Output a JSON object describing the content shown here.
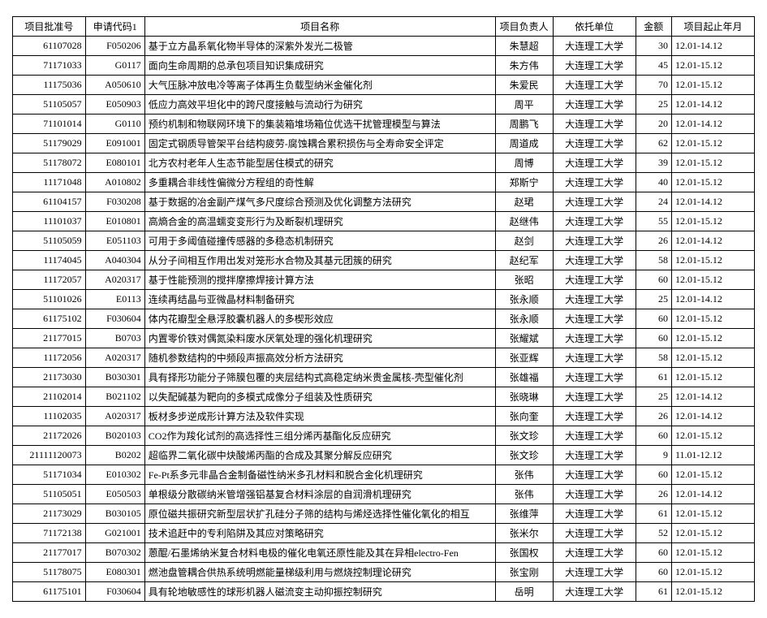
{
  "table": {
    "columns": [
      "项目批准号",
      "申请代码1",
      "项目名称",
      "项目负责人",
      "依托单位",
      "金额",
      "项目起止年月"
    ],
    "rows": [
      [
        "61107028",
        "F050206",
        "基于立方晶系氧化物半导体的深紫外发光二极管",
        "朱慧超",
        "大连理工大学",
        "30",
        "12.01-14.12"
      ],
      [
        "71171033",
        "G0117",
        "面向生命周期的总承包项目知识集成研究",
        "朱方伟",
        "大连理工大学",
        "45",
        "12.01-15.12"
      ],
      [
        "11175036",
        "A050610",
        "大气压脉冲放电冷等离子体再生负载型纳米金催化剂",
        "朱爱民",
        "大连理工大学",
        "70",
        "12.01-15.12"
      ],
      [
        "51105057",
        "E050903",
        "低应力高效平坦化中的跨尺度接触与流动行为研究",
        "周平",
        "大连理工大学",
        "25",
        "12.01-14.12"
      ],
      [
        "71101014",
        "G0110",
        "预约机制和物联网环境下的集装箱堆场箱位优选干扰管理模型与算法",
        "周鹏飞",
        "大连理工大学",
        "20",
        "12.01-14.12"
      ],
      [
        "51179029",
        "E091001",
        "固定式钢质导管架平台结构疲劳-腐蚀耦合累积损伤与全寿命安全评定",
        "周道成",
        "大连理工大学",
        "62",
        "12.01-15.12"
      ],
      [
        "51178072",
        "E080101",
        "北方农村老年人生态节能型居住模式的研究",
        "周博",
        "大连理工大学",
        "39",
        "12.01-15.12"
      ],
      [
        "11171048",
        "A010802",
        "多重耦合非线性偏微分方程组的奇性解",
        "郑斯宁",
        "大连理工大学",
        "40",
        "12.01-15.12"
      ],
      [
        "61104157",
        "F030208",
        "基于数据的冶金副产煤气多尺度综合预测及优化调整方法研究",
        "赵珺",
        "大连理工大学",
        "24",
        "12.01-14.12"
      ],
      [
        "11101037",
        "E010801",
        "高熵合金的高温蠕变变形行为及断裂机理研究",
        "赵继伟",
        "大连理工大学",
        "55",
        "12.01-15.12"
      ],
      [
        "51105059",
        "E051103",
        "可用于多阈值碰撞传感器的多稳态机制研究",
        "赵剑",
        "大连理工大学",
        "26",
        "12.01-14.12"
      ],
      [
        "11174045",
        "A040304",
        "从分子间相互作用出发对笼形水合物及其基元团簇的研究",
        "赵纪军",
        "大连理工大学",
        "58",
        "12.01-15.12"
      ],
      [
        "11172057",
        "A020317",
        "基于性能预测的搅拌摩擦焊接计算方法",
        "张昭",
        "大连理工大学",
        "60",
        "12.01-15.12"
      ],
      [
        "51101026",
        "E0113",
        "连续再结晶与亚微晶材料制备研究",
        "张永顺",
        "大连理工大学",
        "25",
        "12.01-14.12"
      ],
      [
        "61175102",
        "F030604",
        "体内花瓣型全悬浮胶囊机器人的多楔形效应",
        "张永顺",
        "大连理工大学",
        "60",
        "12.01-15.12"
      ],
      [
        "21177015",
        "B0703",
        "内置零价铁对偶氮染料废水厌氧处理的强化机理研究",
        "张耀斌",
        "大连理工大学",
        "60",
        "12.01-15.12"
      ],
      [
        "11172056",
        "A020317",
        "随机参数结构的中频段声振高效分析方法研究",
        "张亚辉",
        "大连理工大学",
        "58",
        "12.01-15.12"
      ],
      [
        "21173030",
        "B030301",
        "具有择形功能分子筛膜包覆的夹层结构式高稳定纳米贵金属核-壳型催化剂",
        "张雄福",
        "大连理工大学",
        "61",
        "12.01-15.12"
      ],
      [
        "21102014",
        "B021102",
        "以失配碱基为靶向的多模式成像分子组装及性质研究",
        "张晓琳",
        "大连理工大学",
        "25",
        "12.01-14.12"
      ],
      [
        "11102035",
        "A020317",
        "板材多步逆成形计算方法及软件实现",
        "张向奎",
        "大连理工大学",
        "26",
        "12.01-14.12"
      ],
      [
        "21172026",
        "B020103",
        "CO2作为羧化试剂的高选择性三组分烯丙基酯化反应研究",
        "张文珍",
        "大连理工大学",
        "60",
        "12.01-15.12"
      ],
      [
        "21111120073",
        "B0202",
        "超临界二氧化碳中炔酸烯丙酯的合成及其聚分解反应研究",
        "张文珍",
        "大连理工大学",
        "9",
        "11.01-12.12"
      ],
      [
        "51171034",
        "E010302",
        "Fe-Pt系多元非晶合金制备磁性纳米多孔材料和脱合金化机理研究",
        "张伟",
        "大连理工大学",
        "60",
        "12.01-15.12"
      ],
      [
        "51105051",
        "E050503",
        "单根级分散碳纳米管增强铝基复合材料涂层的自润滑机理研究",
        "张伟",
        "大连理工大学",
        "26",
        "12.01-14.12"
      ],
      [
        "21173029",
        "B030105",
        "原位磁共振研究新型层状扩孔硅分子筛的结构与烯烃选择性催化氧化的相互",
        "张维萍",
        "大连理工大学",
        "61",
        "12.01-15.12"
      ],
      [
        "71172138",
        "G021001",
        "技术追赶中的专利陷阱及其应对策略研究",
        "张米尔",
        "大连理工大学",
        "52",
        "12.01-15.12"
      ],
      [
        "21177017",
        "B070302",
        "蒽醌/石墨烯纳米复合材料电极的催化电氧还原性能及其在异相electro-Fen",
        "张国权",
        "大连理工大学",
        "60",
        "12.01-15.12"
      ],
      [
        "51178075",
        "E080301",
        "燃池盘管耦合供热系统明燃能量梯级利用与燃烧控制理论研究",
        "张宝刚",
        "大连理工大学",
        "60",
        "12.01-15.12"
      ],
      [
        "61175101",
        "F030604",
        "具有轮地敏感性的球形机器人磁流变主动抑振控制研究",
        "岳明",
        "大连理工大学",
        "61",
        "12.01-15.12"
      ]
    ]
  }
}
